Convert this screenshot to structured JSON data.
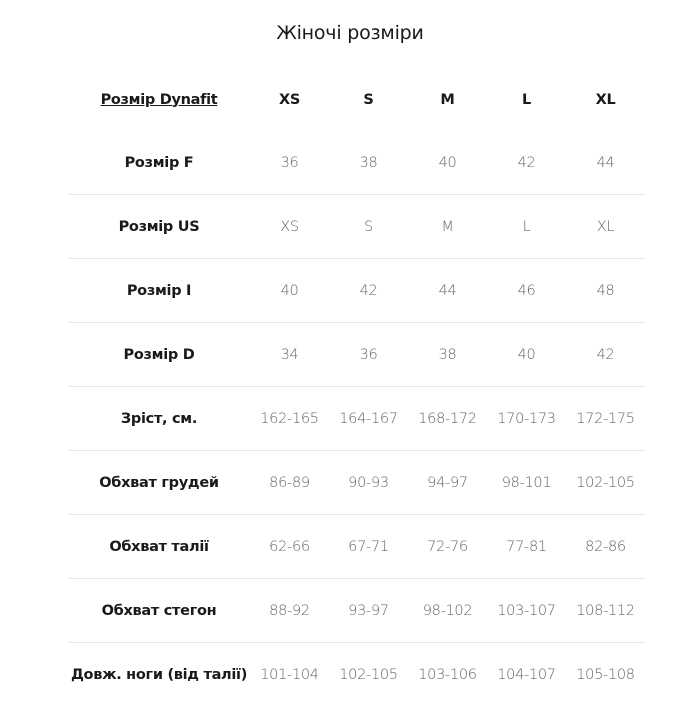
{
  "title": "Жіночі розміри",
  "table": {
    "header": {
      "label": "Розмір Dynafit",
      "sizes": [
        "XS",
        "S",
        "M",
        "L",
        "XL"
      ]
    },
    "rows": [
      {
        "label": "Розмір F",
        "values": [
          "36",
          "38",
          "40",
          "42",
          "44"
        ]
      },
      {
        "label": "Розмір US",
        "values": [
          "XS",
          "S",
          "M",
          "L",
          "XL"
        ]
      },
      {
        "label": "Розмір I",
        "values": [
          "40",
          "42",
          "44",
          "46",
          "48"
        ]
      },
      {
        "label": "Розмір D",
        "values": [
          "34",
          "36",
          "38",
          "40",
          "42"
        ]
      },
      {
        "label": "Зріст, см.",
        "values": [
          "162-165",
          "164-167",
          "168-172",
          "170-173",
          "172-175"
        ]
      },
      {
        "label": "Обхват грудей",
        "values": [
          "86-89",
          "90-93",
          "94-97",
          "98-101",
          "102-105"
        ]
      },
      {
        "label": "Обхват талії",
        "values": [
          "62-66",
          "67-71",
          "72-76",
          "77-81",
          "82-86"
        ]
      },
      {
        "label": "Обхват стегон",
        "values": [
          "88-92",
          "93-97",
          "98-102",
          "103-107",
          "108-112"
        ]
      },
      {
        "label": "Довж. ноги (від талії)",
        "values": [
          "101-104",
          "102-105",
          "103-106",
          "104-107",
          "105-108"
        ]
      }
    ]
  }
}
